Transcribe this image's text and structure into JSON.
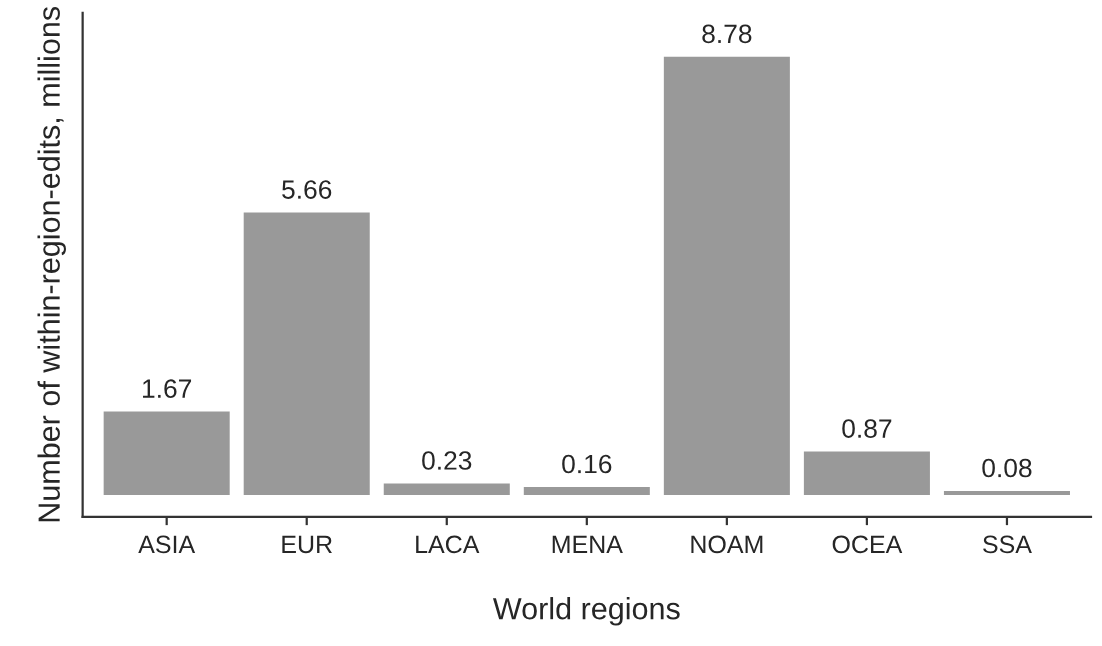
{
  "chart_data": {
    "type": "bar",
    "xlabel": "World regions",
    "ylabel": "Number of within-region-edits, millions",
    "categories": [
      "ASIA",
      "EUR",
      "LACA",
      "MENA",
      "NOAM",
      "OCEA",
      "SSA"
    ],
    "values": [
      1.67,
      5.66,
      0.23,
      0.16,
      8.78,
      0.87,
      0.08
    ],
    "color": "#999999",
    "data_labels": true,
    "tick_labels": "x",
    "grid": false,
    "legend": false
  }
}
